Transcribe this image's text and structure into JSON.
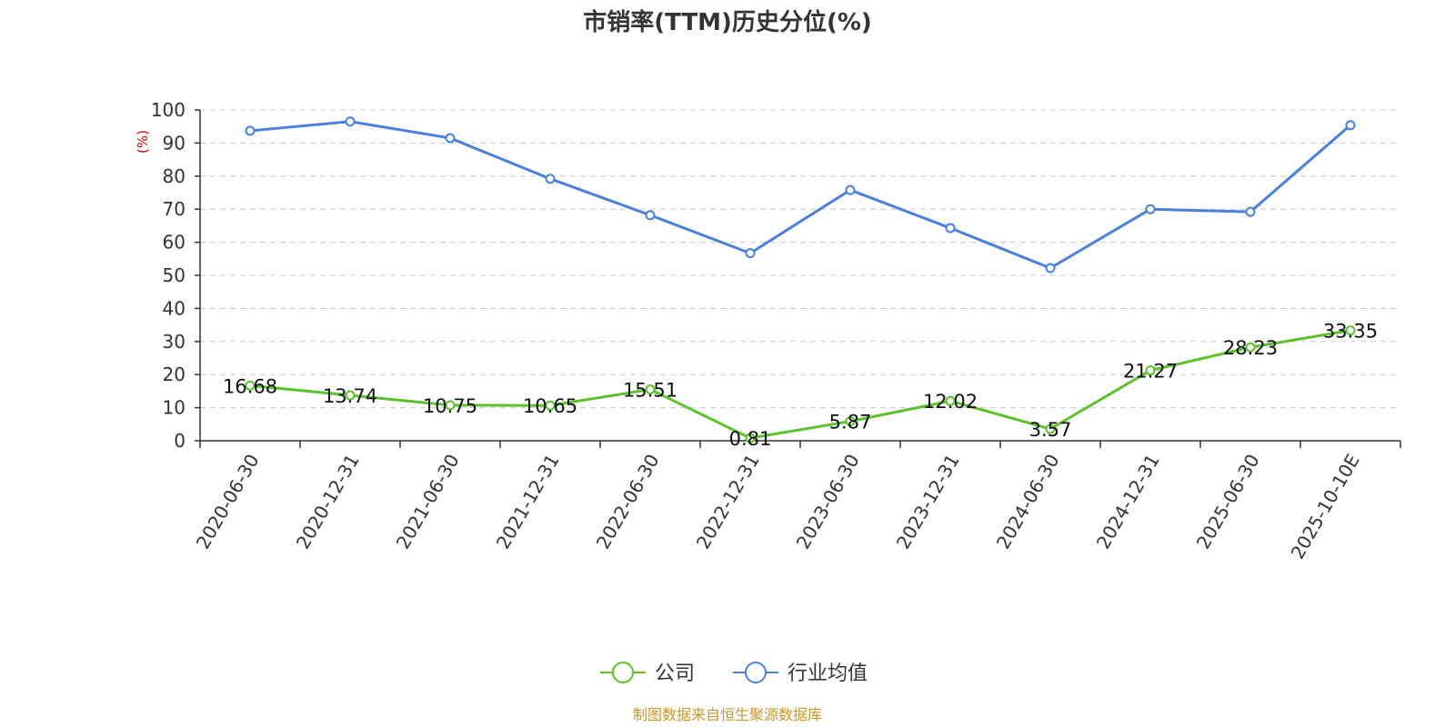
{
  "chart_data": {
    "type": "line",
    "title": "市销率(TTM)历史分位(%)",
    "ylabel": "(%)",
    "xlabel": "",
    "ylim": [
      0,
      100
    ],
    "yticks": [
      0,
      10,
      20,
      30,
      40,
      50,
      60,
      70,
      80,
      90,
      100
    ],
    "grid": true,
    "legend_position": "bottom-center",
    "categories": [
      "2020-06-30",
      "2020-12-31",
      "2021-06-30",
      "2021-12-31",
      "2022-06-30",
      "2022-12-31",
      "2023-06-30",
      "2023-12-31",
      "2024-06-30",
      "2024-12-31",
      "2025-06-30",
      "2025-10-10E"
    ],
    "series": [
      {
        "name": "公司",
        "color": "#5cc12a",
        "show_labels": true,
        "values": [
          16.68,
          13.74,
          10.75,
          10.65,
          15.51,
          0.81,
          5.87,
          12.02,
          3.57,
          21.27,
          28.23,
          33.35
        ]
      },
      {
        "name": "行业均值",
        "color": "#4a7fdc",
        "show_labels": false,
        "values": [
          93.7,
          96.5,
          91.5,
          79.2,
          68.2,
          56.7,
          75.8,
          64.3,
          52.2,
          70.0,
          69.2,
          95.4
        ]
      }
    ]
  },
  "source_note": "制图数据来自恒生聚源数据库"
}
